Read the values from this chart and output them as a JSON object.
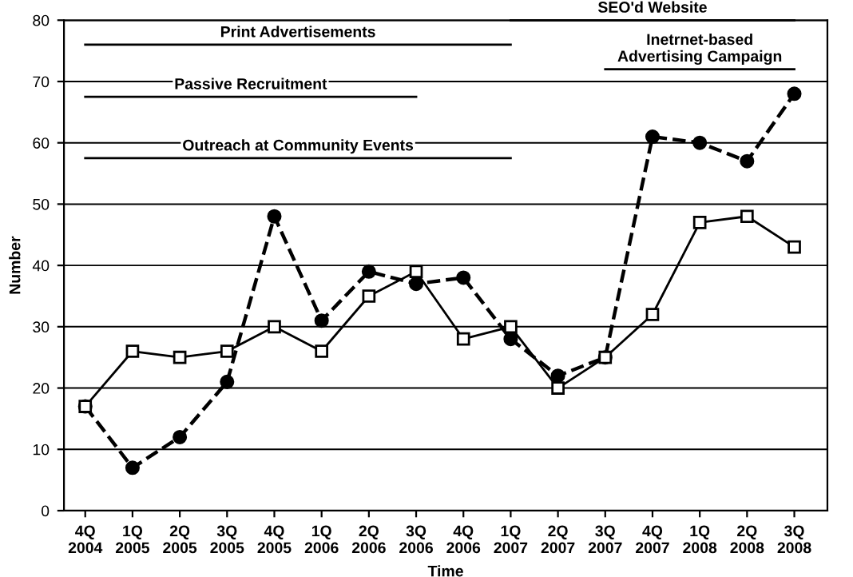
{
  "chart_data": {
    "type": "line",
    "xlabel": "Time",
    "ylabel": "Number",
    "categories": [
      "4Q\n2004",
      "1Q\n2005",
      "2Q\n2005",
      "3Q\n2005",
      "4Q\n2005",
      "1Q\n2006",
      "2Q\n2006",
      "3Q\n2006",
      "4Q\n2006",
      "1Q\n2007",
      "2Q\n2007",
      "3Q\n2007",
      "4Q\n2007",
      "1Q\n2008",
      "2Q\n2008",
      "3Q\n2008"
    ],
    "series": [
      {
        "color": "#000000",
        "marker": "square",
        "line_style": "solid",
        "values": [
          17,
          26,
          25,
          26,
          30,
          26,
          35,
          39,
          28,
          30,
          20,
          25,
          32,
          47,
          48,
          43
        ]
      },
      {
        "color": "#000000",
        "marker": "circle",
        "line_style": "dashed",
        "values": [
          17,
          7,
          12,
          21,
          48,
          31,
          39,
          37,
          38,
          28,
          22,
          25,
          61,
          60,
          57,
          68
        ]
      },
      {
        "name": "SEO'd Website",
        "color": "#000000",
        "marker": "none",
        "line_style": "solid",
        "values": [
          null,
          null,
          null,
          null,
          null,
          null,
          null,
          null,
          null,
          80,
          80,
          80,
          80,
          80,
          80,
          80
        ]
      },
      {
        "name": "Print Advertisements",
        "color": "#000000",
        "marker": "none",
        "line_style": "solid",
        "values": [
          76,
          76,
          76,
          76,
          76,
          76,
          76,
          76,
          76,
          76,
          null,
          null,
          null,
          null,
          null,
          null
        ]
      },
      {
        "name": "Inetrnet-based\nAdvertising Campaign",
        "color": "#000000",
        "marker": "none",
        "line_style": "solid",
        "values": [
          null,
          null,
          null,
          null,
          null,
          null,
          null,
          null,
          null,
          null,
          null,
          72,
          72,
          72,
          72,
          72
        ]
      },
      {
        "name": "Passive Recruitment",
        "color": "#000000",
        "marker": "none",
        "line_style": "solid",
        "values": [
          67.5,
          67.5,
          67.5,
          67.5,
          67.5,
          67.5,
          67.5,
          67.5,
          null,
          null,
          null,
          null,
          null,
          null,
          null,
          null
        ]
      },
      {
        "name": "Outreach at Community Events",
        "color": "#000000",
        "marker": "none",
        "line_style": "solid",
        "values": [
          57.5,
          57.5,
          57.5,
          57.5,
          57.5,
          57.5,
          57.5,
          57.5,
          57.5,
          57.5,
          null,
          null,
          null,
          null,
          null,
          null
        ]
      }
    ],
    "ylim": [
      0,
      80
    ],
    "yticks": [
      0,
      10,
      20,
      30,
      40,
      50,
      60,
      70,
      80
    ],
    "grid": "y",
    "legend": false
  }
}
